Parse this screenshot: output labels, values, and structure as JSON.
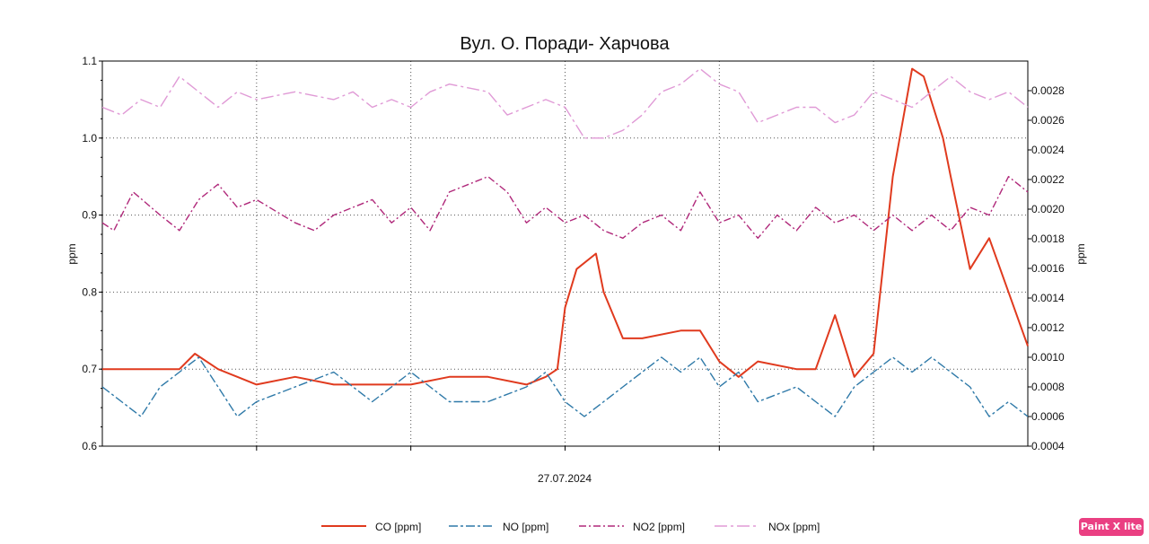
{
  "watermark": "Paint X lite",
  "chart_data": {
    "type": "line",
    "title": "Вул. О. Поради- Харчова",
    "xlabel": "27.07.2024",
    "ylabel_left": "ppm",
    "ylabel_right": "ppm",
    "ylim_left": [
      0.6,
      1.1
    ],
    "ylim_right": [
      0.0004,
      0.003
    ],
    "yticks_left": [
      "0.6",
      "0.7",
      "0.8",
      "0.9",
      "1.0",
      "1.1"
    ],
    "yticks_right": [
      "0.0004",
      "0.0006",
      "0.0008",
      "0.0010",
      "0.0012",
      "0.0014",
      "0.0016",
      "0.0018",
      "0.0020",
      "0.0022",
      "0.0024",
      "0.0026",
      "0.0028"
    ],
    "xlim": [
      0,
      24
    ],
    "grid": true,
    "legend_position": "bottom",
    "series": [
      {
        "name": "CO [ppm]",
        "axis": "left",
        "color": "#e03a1e",
        "dash": "solid",
        "x": [
          0,
          0.5,
          1,
          1.5,
          2,
          2.4,
          3,
          3.5,
          4,
          5,
          6,
          7,
          8,
          9,
          10,
          11,
          11.5,
          11.8,
          12,
          12.3,
          12.8,
          13,
          13.5,
          14,
          15,
          15.5,
          16,
          16.5,
          17,
          18,
          18.5,
          19,
          19.5,
          20,
          20.5,
          21,
          21.3,
          21.8,
          22,
          22.5,
          23,
          23.5,
          24
        ],
        "values": [
          0.7,
          0.7,
          0.7,
          0.7,
          0.7,
          0.72,
          0.7,
          0.69,
          0.68,
          0.69,
          0.68,
          0.68,
          0.68,
          0.69,
          0.69,
          0.68,
          0.69,
          0.7,
          0.78,
          0.83,
          0.85,
          0.8,
          0.74,
          0.74,
          0.75,
          0.75,
          0.71,
          0.69,
          0.71,
          0.7,
          0.7,
          0.77,
          0.69,
          0.72,
          0.95,
          1.09,
          1.08,
          1.0,
          0.95,
          0.83,
          0.87,
          0.8,
          0.73
        ]
      },
      {
        "name": "NO [ppm]",
        "axis": "right",
        "color": "#2e79a8",
        "dash": "10,3,3,3",
        "x": [
          0,
          0.5,
          1,
          1.5,
          2,
          2.5,
          3,
          3.5,
          4,
          5,
          6,
          7,
          8,
          9,
          10,
          11,
          11.5,
          12,
          12.5,
          13,
          13.5,
          14,
          14.5,
          15,
          15.5,
          16,
          16.5,
          17,
          18,
          18.5,
          19,
          19.5,
          20,
          20.5,
          21,
          21.5,
          22,
          22.5,
          23,
          23.5,
          24
        ],
        "values": [
          0.0008,
          0.0007,
          0.0006,
          0.0008,
          0.0009,
          0.001,
          0.0008,
          0.0006,
          0.0007,
          0.0008,
          0.0009,
          0.0007,
          0.0009,
          0.0007,
          0.0007,
          0.0008,
          0.0009,
          0.0007,
          0.0006,
          0.0007,
          0.0008,
          0.0009,
          0.001,
          0.0009,
          0.001,
          0.0008,
          0.0009,
          0.0007,
          0.0008,
          0.0007,
          0.0006,
          0.0008,
          0.0009,
          0.001,
          0.0009,
          0.001,
          0.0009,
          0.0008,
          0.0006,
          0.0007,
          0.0006
        ]
      },
      {
        "name": "NO2 [ppm]",
        "axis": "left",
        "color": "#b0287a",
        "dash": "8,3,2,3",
        "x": [
          0,
          0.3,
          0.8,
          1.5,
          2,
          2.5,
          3,
          3.5,
          4,
          5,
          5.5,
          6,
          7,
          7.5,
          8,
          8.5,
          9,
          10,
          10.5,
          11,
          11.5,
          12,
          12.5,
          13,
          13.5,
          14,
          14.5,
          15,
          15.5,
          16,
          16.5,
          17,
          17.5,
          18,
          18.5,
          19,
          19.5,
          20,
          20.5,
          21,
          21.5,
          22,
          22.5,
          23,
          23.5,
          24
        ],
        "values": [
          0.89,
          0.88,
          0.93,
          0.9,
          0.88,
          0.92,
          0.94,
          0.91,
          0.92,
          0.89,
          0.88,
          0.9,
          0.92,
          0.89,
          0.91,
          0.88,
          0.93,
          0.95,
          0.93,
          0.89,
          0.91,
          0.89,
          0.9,
          0.88,
          0.87,
          0.89,
          0.9,
          0.88,
          0.93,
          0.89,
          0.9,
          0.87,
          0.9,
          0.88,
          0.91,
          0.89,
          0.9,
          0.88,
          0.9,
          0.88,
          0.9,
          0.88,
          0.91,
          0.9,
          0.95,
          0.93
        ]
      },
      {
        "name": "NOx [ppm]",
        "axis": "left",
        "color": "#e09ad6",
        "dash": "14,4,3,4",
        "x": [
          0,
          0.5,
          1,
          1.5,
          2,
          2.5,
          3,
          3.5,
          4,
          5,
          6,
          6.5,
          7,
          7.5,
          8,
          8.5,
          9,
          10,
          10.5,
          11,
          11.5,
          12,
          12.5,
          13,
          13.5,
          14,
          14.5,
          15,
          15.5,
          16,
          16.5,
          17,
          17.5,
          18,
          18.5,
          19,
          19.5,
          20,
          20.5,
          21,
          21.5,
          22,
          22.5,
          23,
          23.5,
          24
        ],
        "values": [
          1.04,
          1.03,
          1.05,
          1.04,
          1.08,
          1.06,
          1.04,
          1.06,
          1.05,
          1.06,
          1.05,
          1.06,
          1.04,
          1.05,
          1.04,
          1.06,
          1.07,
          1.06,
          1.03,
          1.04,
          1.05,
          1.04,
          1.0,
          1.0,
          1.01,
          1.03,
          1.06,
          1.07,
          1.09,
          1.07,
          1.06,
          1.02,
          1.03,
          1.04,
          1.04,
          1.02,
          1.03,
          1.06,
          1.05,
          1.04,
          1.06,
          1.08,
          1.06,
          1.05,
          1.06,
          1.04
        ]
      }
    ]
  }
}
